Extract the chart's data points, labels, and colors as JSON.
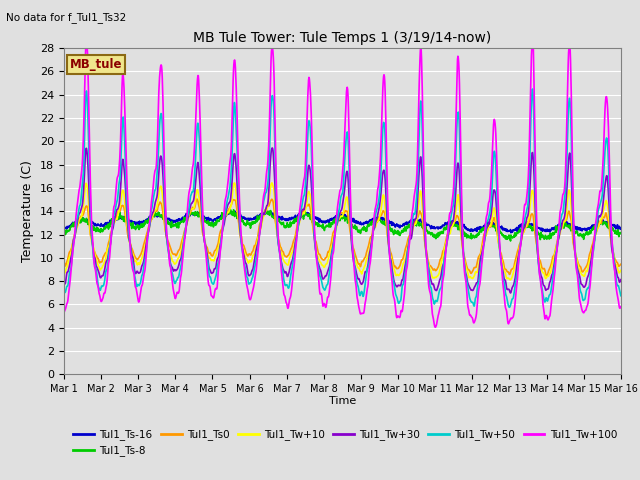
{
  "title": "MB Tule Tower: Tule Temps 1 (3/19/14-now)",
  "no_data_text": "No data for f_Tul1_Ts32",
  "xlabel": "Time",
  "ylabel": "Temperature (C)",
  "ylim": [
    0,
    28
  ],
  "yticks": [
    0,
    2,
    4,
    6,
    8,
    10,
    12,
    14,
    16,
    18,
    20,
    22,
    24,
    26,
    28
  ],
  "xtick_labels": [
    "Mar 1",
    "Mar 2",
    "Mar 3",
    "Mar 4",
    "Mar 5",
    "Mar 6",
    "Mar 7",
    "Mar 8",
    "Mar 9",
    "Mar 10",
    "Mar 11",
    "Mar 12",
    "Mar 13",
    "Mar 14",
    "Mar 15",
    "Mar 16"
  ],
  "bg_color": "#e0e0e0",
  "grid_color": "white",
  "legend_box_color": "#f0e68c",
  "legend_box_edge": "#8b6914",
  "legend_box_text": "MB_tule",
  "legend_box_text_color": "#8b0000",
  "series": [
    {
      "label": "Tul1_Ts-16",
      "color": "#0000cc",
      "lw": 1.2
    },
    {
      "label": "Tul1_Ts-8",
      "color": "#00cc00",
      "lw": 1.2
    },
    {
      "label": "Tul1_Ts0",
      "color": "#ff9900",
      "lw": 1.2
    },
    {
      "label": "Tul1_Tw+10",
      "color": "#ffff00",
      "lw": 1.2
    },
    {
      "label": "Tul1_Tw+30",
      "color": "#8800cc",
      "lw": 1.2
    },
    {
      "label": "Tul1_Tw+50",
      "color": "#00cccc",
      "lw": 1.2
    },
    {
      "label": "Tul1_Tw+100",
      "color": "#ff00ff",
      "lw": 1.2
    }
  ],
  "figsize": [
    6.4,
    4.8
  ],
  "dpi": 100
}
